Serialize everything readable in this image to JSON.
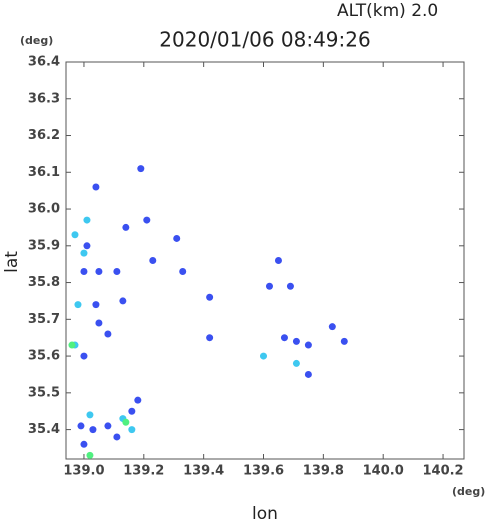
{
  "chart_data": {
    "type": "scatter",
    "title": "2020/01/06 08:49:26",
    "subtitle": "ALT(km) 2.0",
    "y_unit": "(deg)",
    "x_unit": "(deg)",
    "x_label": "lon",
    "y_label": "lat",
    "xlim": [
      138.94,
      140.27
    ],
    "ylim": [
      35.32,
      36.4
    ],
    "xticks": [
      {
        "value": 139,
        "label": "139.0"
      },
      139.2,
      139.4,
      139.6,
      139.8,
      {
        "value": 140,
        "label": "140.0"
      },
      140.2
    ],
    "yticks": [
      35.4,
      35.5,
      35.6,
      35.7,
      35.8,
      35.9,
      {
        "value": 36,
        "label": "36.0"
      },
      36.1,
      36.2,
      36.3,
      36.4
    ],
    "series": [
      {
        "color": "#3a50f0",
        "x": [
          139.04,
          139.19,
          139.21,
          139.14,
          139.01,
          139.0,
          139.05,
          139.11,
          139.23,
          139.33,
          139.31,
          139.04,
          139.13,
          139.08,
          139.05,
          139.0,
          139.65,
          139.62,
          139.69,
          139.42,
          139.42,
          139.67,
          139.71,
          139.75,
          139.83,
          139.87,
          139.75,
          138.99,
          139.08,
          139.11,
          139.16,
          139.18,
          139.0,
          139.03
        ],
        "y": [
          36.06,
          36.11,
          35.97,
          35.95,
          35.9,
          35.83,
          35.83,
          35.83,
          35.86,
          35.83,
          35.92,
          35.74,
          35.75,
          35.66,
          35.69,
          35.6,
          35.86,
          35.79,
          35.79,
          35.76,
          35.65,
          35.65,
          35.64,
          35.63,
          35.68,
          35.64,
          35.55,
          35.41,
          35.41,
          35.38,
          35.45,
          35.48,
          35.36,
          35.4
        ]
      },
      {
        "color": "#3ec8f0",
        "x": [
          139.01,
          138.97,
          139.0,
          138.98,
          138.97,
          139.13,
          139.71,
          139.6,
          139.16,
          139.02
        ],
        "y": [
          35.97,
          35.93,
          35.88,
          35.74,
          35.63,
          35.43,
          35.58,
          35.6,
          35.4,
          35.44
        ]
      },
      {
        "color": "#50f080",
        "x": [
          138.96,
          139.14,
          139.02
        ],
        "y": [
          35.63,
          35.42,
          35.33
        ]
      }
    ]
  }
}
